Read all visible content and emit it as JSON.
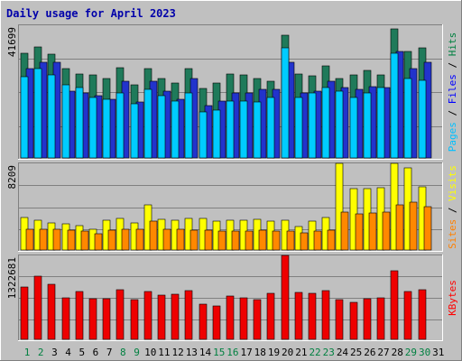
{
  "chart_data": {
    "type": "bar",
    "title": "Daily usage for April 2023",
    "categories": [
      "1",
      "2",
      "3",
      "4",
      "5",
      "6",
      "7",
      "8",
      "9",
      "10",
      "11",
      "12",
      "13",
      "14",
      "15",
      "16",
      "17",
      "18",
      "19",
      "20",
      "21",
      "22",
      "23",
      "24",
      "25",
      "26",
      "27",
      "28",
      "29",
      "30",
      "31"
    ],
    "weekend_days": [
      "1",
      "2",
      "8",
      "9",
      "15",
      "16",
      "22",
      "23",
      "29",
      "30"
    ],
    "panels": [
      {
        "id": "pages-files-hits",
        "ymax_label": "41699",
        "ylim": [
          0,
          41699
        ],
        "legend": [
          "Pages",
          "Files",
          "Hits"
        ],
        "legend_colors": [
          "#00c0ff",
          "#0000ff",
          "#008040"
        ],
        "series": [
          {
            "name": "Hits",
            "color": "#1f7a5a",
            "values": [
              33000,
              34800,
              32500,
              28000,
              26500,
              26000,
              25000,
              28500,
              23000,
              28000,
              25000,
              23500,
              28000,
              21800,
              23500,
              26500,
              26000,
              25000,
              24000,
              38500,
              26500,
              25800,
              29000,
              25000,
              26000,
              27500,
              26000,
              40500,
              33500,
              34500,
              0
            ]
          },
          {
            "name": "Files",
            "color": "#2233cc",
            "values": [
              28000,
              30000,
              30000,
              21000,
              20500,
              19500,
              18500,
              24000,
              17500,
              24000,
              21000,
              18500,
              25000,
              16500,
              18000,
              20500,
              20500,
              21500,
              21500,
              30000,
              20500,
              21000,
              24000,
              22000,
              21500,
              22500,
              22000,
              33500,
              28000,
              30000,
              0
            ]
          },
          {
            "name": "Pages",
            "color": "#00ccff",
            "values": [
              25500,
              28000,
              26000,
              23000,
              22000,
              19000,
              18500,
              20500,
              17000,
              21500,
              19500,
              18000,
              20500,
              14500,
              15000,
              18000,
              18000,
              17500,
              19000,
              34500,
              19000,
              20500,
              22000,
              21000,
              19000,
              20500,
              22000,
              33000,
              25000,
              24500,
              0
            ]
          }
        ]
      },
      {
        "id": "sites-visits",
        "ymax_label": "8209",
        "ylim": [
          0,
          8209
        ],
        "legend": [
          "Sites",
          "Visits"
        ],
        "legend_colors": [
          "#ff8000",
          "#ffff00"
        ],
        "series": [
          {
            "name": "Visits",
            "color": "#ffff00",
            "values": [
              3100,
              2800,
              2600,
              2500,
              2300,
              2000,
              2800,
              3000,
              2600,
              4300,
              2900,
              2800,
              3000,
              3000,
              2700,
              2800,
              2800,
              2900,
              2700,
              2800,
              2200,
              2700,
              3100,
              8200,
              5800,
              5800,
              5900,
              8200,
              7800,
              6000,
              0
            ]
          },
          {
            "name": "Sites",
            "color": "#ff8800",
            "values": [
              2000,
              2000,
              2000,
              1900,
              1800,
              1500,
              1900,
              2000,
              2000,
              2700,
              2000,
              2000,
              1900,
              1900,
              1800,
              1800,
              1800,
              1900,
              1800,
              1800,
              1600,
              1800,
              1900,
              3600,
              3400,
              3500,
              3600,
              4300,
              4500,
              4100,
              0
            ]
          }
        ]
      },
      {
        "id": "kbytes",
        "ymax_label": "1322681",
        "ylim": [
          0,
          1322681
        ],
        "legend": [
          "KBytes"
        ],
        "legend_colors": [
          "#ff0000"
        ],
        "series": [
          {
            "name": "KBytes",
            "color": "#ee0000",
            "values": [
              820000,
              990000,
              870000,
              660000,
              760000,
              640000,
              640000,
              780000,
              630000,
              760000,
              690000,
              710000,
              770000,
              560000,
              530000,
              680000,
              650000,
              630000,
              720000,
              1320000,
              740000,
              720000,
              770000,
              620000,
              580000,
              640000,
              660000,
              1080000,
              750000,
              780000,
              0
            ]
          }
        ]
      }
    ]
  }
}
